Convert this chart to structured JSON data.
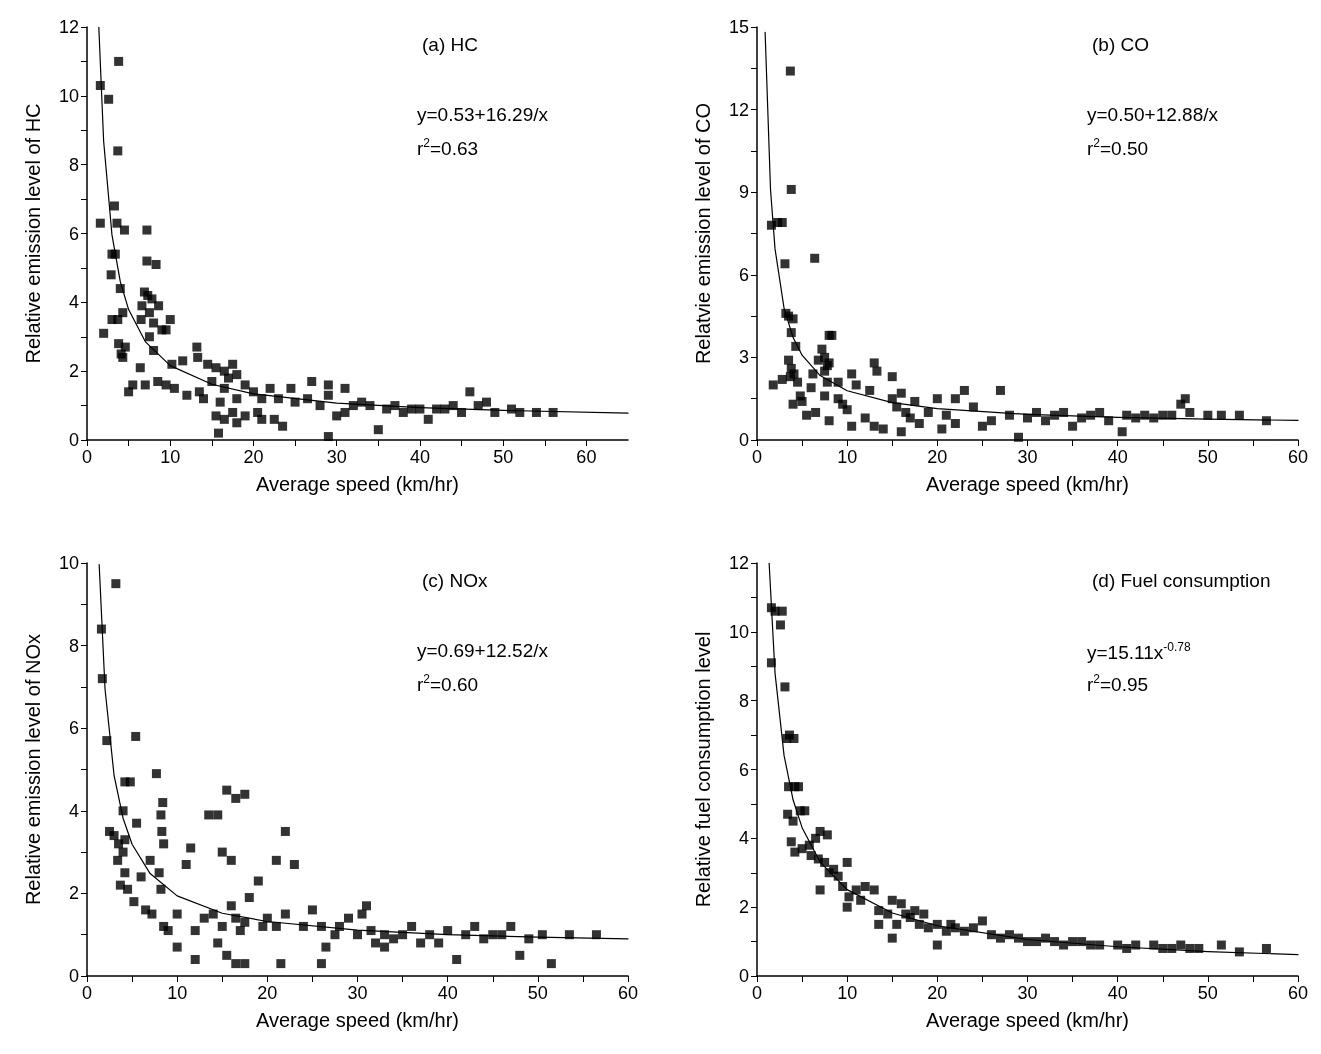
{
  "chart_data": [
    {
      "type": "scatter",
      "title": "(a) HC",
      "xlabel": "Average speed (km/hr)",
      "ylabel": "Relative emission level of HC",
      "xlim": [
        0,
        65
      ],
      "xticks": [
        0,
        {
          "value": 5,
          "label": null
        },
        10,
        {
          "value": 15,
          "label": null
        },
        20,
        {
          "value": 25,
          "label": null
        },
        30,
        {
          "value": 35,
          "label": null
        },
        40,
        {
          "value": 45,
          "label": null
        },
        50,
        {
          "value": 55,
          "label": null
        },
        60
      ],
      "ylim": [
        0,
        12
      ],
      "yticks": [
        0,
        {
          "value": 1,
          "label": null
        },
        2,
        {
          "value": 3,
          "label": null
        },
        4,
        {
          "value": 5,
          "label": null
        },
        6,
        {
          "value": 7,
          "label": null
        },
        8,
        {
          "value": 9,
          "label": null
        },
        10,
        {
          "value": 11,
          "label": null
        },
        12
      ],
      "grid": false,
      "annotations": [
        "y=0.53+16.29/x",
        "r$^{2}$=0.63"
      ],
      "series": [
        {
          "marker": "square",
          "color": "#000000",
          "x": [
            1.6,
            2.6,
            3.8,
            3.7,
            1.6,
            3.3,
            3.6,
            4.5,
            7.2,
            3.0,
            3.4,
            7.2,
            8.3,
            2.9,
            4.0,
            6.9,
            7.3,
            7.8,
            8.6,
            6.6,
            7.5,
            3.7,
            4.3,
            2.0,
            3.0,
            6.5,
            8.0,
            9.0,
            10.0,
            9.5,
            7.5,
            3.8,
            4.6,
            4.1,
            4.3,
            8.0,
            13.2,
            10.2,
            11.5,
            6.4,
            13.3,
            7.0,
            5.5,
            5.0,
            8.5,
            9.5,
            10.5,
            12.0,
            13.5,
            14.5,
            15.5,
            16.5,
            17.5,
            18.0,
            15.0,
            16.5,
            17.0,
            19.0,
            14.0,
            16.0,
            18.0,
            20.0,
            21.0,
            22.0,
            23.0,
            15.5,
            16.5,
            17.5,
            18.0,
            19.0,
            20.5,
            15.8,
            21.0,
            22.5,
            23.5,
            24.5,
            25.0,
            26.5,
            27.0,
            28.0,
            29.0,
            29.0,
            30.0,
            31.0,
            32.0,
            33.0,
            34.0,
            35.0,
            36.0,
            37.0,
            38.0,
            39.0,
            40.0,
            41.0,
            42.0,
            43.0,
            44.0,
            45.0,
            46.0,
            47.0,
            48.0,
            49.0,
            51.0,
            52.0,
            54.0,
            56.0,
            29.0,
            31.0
          ],
          "values": [
            10.3,
            9.9,
            11.0,
            8.4,
            6.3,
            6.8,
            6.3,
            6.1,
            6.1,
            5.4,
            5.4,
            5.2,
            5.1,
            4.8,
            4.4,
            4.3,
            4.2,
            4.1,
            3.9,
            3.9,
            3.7,
            3.5,
            3.7,
            3.1,
            3.5,
            3.5,
            3.4,
            3.2,
            3.5,
            3.2,
            3.0,
            2.8,
            2.7,
            2.5,
            2.4,
            2.6,
            2.7,
            2.2,
            2.3,
            2.1,
            2.4,
            1.6,
            1.6,
            1.4,
            1.7,
            1.6,
            1.5,
            1.3,
            1.4,
            2.2,
            2.1,
            2.0,
            2.2,
            1.9,
            1.7,
            1.5,
            1.8,
            1.6,
            1.2,
            1.1,
            1.2,
            1.4,
            1.2,
            1.5,
            1.2,
            0.7,
            0.6,
            0.8,
            0.5,
            0.7,
            0.8,
            0.2,
            0.6,
            0.6,
            0.4,
            1.5,
            1.1,
            1.2,
            1.7,
            1.0,
            0.1,
            1.3,
            0.7,
            0.8,
            1.0,
            1.1,
            1.0,
            0.3,
            0.9,
            1.0,
            0.8,
            0.9,
            0.9,
            0.6,
            0.9,
            0.9,
            1.0,
            0.8,
            1.4,
            1.0,
            1.1,
            0.8,
            0.9,
            0.8,
            0.8,
            0.8,
            1.6,
            1.5
          ]
        },
        {
          "type": "line",
          "color": "#000000",
          "x": [
            1.42,
            2,
            3,
            4,
            5,
            7,
            10,
            15,
            20,
            30,
            40,
            50,
            65
          ],
          "values": [
            11.99,
            8.68,
            5.96,
            4.6,
            3.79,
            2.86,
            2.16,
            1.62,
            1.34,
            1.07,
            0.94,
            0.86,
            0.78
          ]
        }
      ]
    },
    {
      "type": "scatter",
      "title": "(b) CO",
      "xlabel": "Average speed (km/hr)",
      "ylabel": "Relatvie emission level of CO",
      "xlim": [
        0,
        60
      ],
      "xticks": [
        0,
        {
          "value": 5,
          "label": null
        },
        10,
        {
          "value": 15,
          "label": null
        },
        20,
        {
          "value": 25,
          "label": null
        },
        30,
        {
          "value": 35,
          "label": null
        },
        40,
        {
          "value": 45,
          "label": null
        },
        50,
        {
          "value": 55,
          "label": null
        },
        60
      ],
      "ylim": [
        0,
        15
      ],
      "yticks": [
        0,
        {
          "value": 1.5,
          "label": null
        },
        3,
        {
          "value": 4.5,
          "label": null
        },
        6,
        {
          "value": 7.5,
          "label": null
        },
        9,
        {
          "value": 10.5,
          "label": null
        },
        12,
        {
          "value": 13.5,
          "label": null
        },
        15
      ],
      "grid": false,
      "annotations": [
        "y=0.50+12.88/x",
        "r$^{2}$=0.50"
      ],
      "series": [
        {
          "marker": "square",
          "color": "#000000",
          "x": [
            3.7,
            3.8,
            1.6,
            2.3,
            2.8,
            3.1,
            6.4,
            3.2,
            3.5,
            4.0,
            3.8,
            4.3,
            3.5,
            3.8,
            4.1,
            7.2,
            8.0,
            8.3,
            7.5,
            8.0,
            7.8,
            6.8,
            7.5,
            1.8,
            2.8,
            3.7,
            4.5,
            6.2,
            7.8,
            9.0,
            10.5,
            11.0,
            4.8,
            5.0,
            6.0,
            7.5,
            9.0,
            12.5,
            13.0,
            13.3,
            15.0,
            4.0,
            5.5,
            6.5,
            8.0,
            9.5,
            10.0,
            10.5,
            12.0,
            13.0,
            14.0,
            15.0,
            15.5,
            16.0,
            16.5,
            17.0,
            17.5,
            18.0,
            16.0,
            19.0,
            20.0,
            21.0,
            22.0,
            23.0,
            24.0,
            25.0,
            26.0,
            27.0,
            28.0,
            29.0,
            30.0,
            31.0,
            32.0,
            33.0,
            34.0,
            35.0,
            36.0,
            37.0,
            38.0,
            39.0,
            40.5,
            41.0,
            42.0,
            43.0,
            44.0,
            45.0,
            46.0,
            47.0,
            47.5,
            48.0,
            50.0,
            51.5,
            53.5,
            56.5,
            20.5,
            22.0
          ],
          "values": [
            13.4,
            9.1,
            7.8,
            7.9,
            7.9,
            6.4,
            6.6,
            4.6,
            4.5,
            4.4,
            3.9,
            3.4,
            2.9,
            2.6,
            2.4,
            3.3,
            3.8,
            3.8,
            3.0,
            2.8,
            2.7,
            2.9,
            2.5,
            2.0,
            2.2,
            2.3,
            2.1,
            2.4,
            2.1,
            2.1,
            2.4,
            2.0,
            1.6,
            1.4,
            1.9,
            1.6,
            1.5,
            1.8,
            2.8,
            2.5,
            2.3,
            1.3,
            0.9,
            1.0,
            0.7,
            1.3,
            1.1,
            0.5,
            0.8,
            0.5,
            0.4,
            1.5,
            1.2,
            1.7,
            1.0,
            0.8,
            1.4,
            0.6,
            0.3,
            1.0,
            1.5,
            0.9,
            1.5,
            1.8,
            1.2,
            0.5,
            0.7,
            1.8,
            0.9,
            0.1,
            0.8,
            1.0,
            0.7,
            0.9,
            1.0,
            0.5,
            0.8,
            0.9,
            1.0,
            0.7,
            0.3,
            0.9,
            0.8,
            0.9,
            0.8,
            0.9,
            0.9,
            1.3,
            1.5,
            1.0,
            0.9,
            0.9,
            0.9,
            0.7,
            0.4,
            0.6
          ]
        },
        {
          "type": "line",
          "color": "#000000",
          "x": [
            0.9,
            1.5,
            2,
            3,
            4,
            5,
            7,
            10,
            15,
            20,
            30,
            40,
            50,
            60
          ],
          "values": [
            14.81,
            9.09,
            6.94,
            4.79,
            3.72,
            3.08,
            2.34,
            1.79,
            1.36,
            1.14,
            0.93,
            0.82,
            0.76,
            0.71
          ]
        }
      ]
    },
    {
      "type": "scatter",
      "title": "(c) NOx",
      "xlabel": "Average speed (km/hr)",
      "ylabel": "Relative emission level of NOx",
      "xlim": [
        0,
        60
      ],
      "xticks": [
        0,
        {
          "value": 5,
          "label": null
        },
        10,
        {
          "value": 15,
          "label": null
        },
        20,
        {
          "value": 25,
          "label": null
        },
        30,
        {
          "value": 35,
          "label": null
        },
        40,
        {
          "value": 45,
          "label": null
        },
        50,
        {
          "value": 55,
          "label": null
        },
        60
      ],
      "ylim": [
        0,
        10
      ],
      "yticks": [
        0,
        {
          "value": 1,
          "label": null
        },
        2,
        {
          "value": 3,
          "label": null
        },
        4,
        {
          "value": 5,
          "label": null
        },
        6,
        {
          "value": 7,
          "label": null
        },
        8,
        {
          "value": 9,
          "label": null
        },
        10
      ],
      "grid": false,
      "annotations": [
        "y=0.69+12.52/x",
        "r$^{2}$=0.60"
      ],
      "series": [
        {
          "marker": "square",
          "color": "#000000",
          "x": [
            1.6,
            1.7,
            3.2,
            2.2,
            5.4,
            4.2,
            4.8,
            4.0,
            5.5,
            2.5,
            3.0,
            3.5,
            4.2,
            3.4,
            4.0,
            3.7,
            4.2,
            4.5,
            5.2,
            6.0,
            7.0,
            7.7,
            8.4,
            8.2,
            8.3,
            8.5,
            8.0,
            8.2,
            7.2,
            6.5,
            8.5,
            9.0,
            10.0,
            10.0,
            11.0,
            11.5,
            12.0,
            13.5,
            14.5,
            15.5,
            16.5,
            17.5,
            15.0,
            16.0,
            19.0,
            21.0,
            22.0,
            23.0,
            12.0,
            13.0,
            14.0,
            15.0,
            16.0,
            16.5,
            17.0,
            17.5,
            14.5,
            15.5,
            16.5,
            17.5,
            18.0,
            19.5,
            20.0,
            21.0,
            21.5,
            22.0,
            24.0,
            25.0,
            26.0,
            26.5,
            27.5,
            28.0,
            29.0,
            30.0,
            31.0,
            31.5,
            32.0,
            33.0,
            34.0,
            35.0,
            36.0,
            37.0,
            38.0,
            39.0,
            40.0,
            41.0,
            42.0,
            43.0,
            44.0,
            45.0,
            46.0,
            47.0,
            48.0,
            49.0,
            50.5,
            51.5,
            53.5,
            56.5,
            26.0,
            33.0,
            30.5
          ],
          "values": [
            8.4,
            7.2,
            9.5,
            5.7,
            5.8,
            4.7,
            4.7,
            4.0,
            3.7,
            3.5,
            3.4,
            3.2,
            3.3,
            2.8,
            3.0,
            2.2,
            2.5,
            2.1,
            1.8,
            2.4,
            2.8,
            4.9,
            4.2,
            3.9,
            3.5,
            3.2,
            2.5,
            2.1,
            1.5,
            1.6,
            1.2,
            1.1,
            0.7,
            1.5,
            2.7,
            3.1,
            1.1,
            3.9,
            3.9,
            4.5,
            4.3,
            4.4,
            3.0,
            2.8,
            2.3,
            2.8,
            3.5,
            2.7,
            0.4,
            1.4,
            1.5,
            1.2,
            1.7,
            1.4,
            1.1,
            1.3,
            0.8,
            0.5,
            0.3,
            0.3,
            1.9,
            1.2,
            1.4,
            1.2,
            0.3,
            1.5,
            1.2,
            1.6,
            1.2,
            0.7,
            1.0,
            1.2,
            1.4,
            1.0,
            1.7,
            1.1,
            0.8,
            1.0,
            0.9,
            1.0,
            1.2,
            0.8,
            1.0,
            0.8,
            1.1,
            0.4,
            1.0,
            1.2,
            0.9,
            1.0,
            1.0,
            1.2,
            0.5,
            0.9,
            1.0,
            0.3,
            1.0,
            1.0,
            0.3,
            0.7,
            1.5
          ]
        },
        {
          "type": "line",
          "color": "#000000",
          "x": [
            1.35,
            2,
            3,
            4,
            5,
            7,
            10,
            15,
            20,
            30,
            40,
            50,
            60
          ],
          "values": [
            9.96,
            6.95,
            4.86,
            3.82,
            3.19,
            2.48,
            1.94,
            1.52,
            1.32,
            1.11,
            1.0,
            0.94,
            0.9
          ]
        }
      ]
    },
    {
      "type": "scatter",
      "title": "(d) Fuel consumption",
      "xlabel": "Average speed (km/hr)",
      "ylabel": "Relative fuel consumption level",
      "xlim": [
        0,
        60
      ],
      "xticks": [
        0,
        {
          "value": 5,
          "label": null
        },
        10,
        {
          "value": 15,
          "label": null
        },
        20,
        {
          "value": 25,
          "label": null
        },
        30,
        {
          "value": 35,
          "label": null
        },
        40,
        {
          "value": 45,
          "label": null
        },
        50,
        {
          "value": 55,
          "label": null
        },
        60
      ],
      "ylim": [
        0,
        12
      ],
      "yticks": [
        0,
        {
          "value": 1,
          "label": null
        },
        2,
        {
          "value": 3,
          "label": null
        },
        4,
        {
          "value": 5,
          "label": null
        },
        6,
        {
          "value": 7,
          "label": null
        },
        8,
        {
          "value": 9,
          "label": null
        },
        10,
        {
          "value": 11,
          "label": null
        },
        12
      ],
      "grid": false,
      "annotations": [
        "y=15.11x$^{-0.78}$",
        "r$^{2}$=0.95"
      ],
      "series": [
        {
          "marker": "square",
          "color": "#000000",
          "x": [
            1.6,
            2.0,
            2.8,
            2.6,
            1.6,
            3.1,
            3.3,
            3.6,
            4.1,
            3.5,
            4.2,
            4.6,
            3.4,
            4.0,
            4.8,
            5.3,
            3.8,
            4.2,
            5.0,
            5.8,
            6.5,
            7.0,
            7.8,
            6.0,
            6.8,
            7.5,
            8.0,
            7.0,
            8.5,
            9.0,
            9.5,
            10.0,
            10.2,
            11.0,
            12.0,
            13.0,
            10.0,
            11.5,
            13.5,
            13.5,
            14.5,
            15.0,
            15.5,
            16.0,
            16.5,
            17.0,
            17.5,
            18.0,
            15.0,
            19.0,
            20.0,
            21.0,
            22.0,
            20.0,
            23.0,
            24.0,
            25.0,
            26.0,
            27.0,
            28.0,
            29.0,
            30.0,
            31.0,
            32.0,
            33.0,
            34.0,
            35.0,
            36.0,
            37.0,
            38.0,
            40.0,
            41.0,
            42.0,
            44.0,
            45.0,
            46.0,
            47.0,
            48.0,
            49.0,
            51.5,
            53.5,
            56.5,
            18.5,
            21.5
          ],
          "values": [
            10.7,
            10.6,
            10.6,
            10.2,
            9.1,
            8.4,
            6.9,
            7.0,
            6.9,
            5.5,
            5.5,
            5.5,
            4.7,
            4.5,
            4.8,
            4.8,
            3.9,
            3.6,
            3.7,
            3.8,
            4.0,
            4.2,
            4.1,
            3.5,
            3.4,
            3.3,
            3.0,
            2.5,
            3.1,
            2.9,
            2.6,
            3.3,
            2.3,
            2.5,
            2.6,
            2.5,
            2.0,
            2.2,
            1.9,
            1.5,
            1.8,
            2.2,
            1.5,
            2.1,
            1.8,
            1.7,
            1.9,
            1.5,
            1.1,
            1.4,
            1.5,
            1.3,
            1.4,
            0.9,
            1.3,
            1.4,
            1.6,
            1.2,
            1.1,
            1.2,
            1.1,
            1.0,
            1.0,
            1.1,
            1.0,
            0.9,
            1.0,
            1.0,
            0.9,
            0.9,
            0.9,
            0.8,
            0.9,
            0.9,
            0.8,
            0.8,
            0.9,
            0.8,
            0.8,
            0.9,
            0.7,
            0.8,
            1.8,
            1.5
          ]
        },
        {
          "type": "line",
          "color": "#000000",
          "x": [
            1.344,
            2,
            3,
            4,
            5,
            7,
            10,
            15,
            20,
            30,
            40,
            50,
            60
          ],
          "values": [
            12.0,
            8.8,
            6.41,
            5.12,
            4.31,
            3.31,
            2.51,
            1.83,
            1.46,
            1.06,
            0.85,
            0.71,
            0.62
          ]
        }
      ]
    }
  ]
}
